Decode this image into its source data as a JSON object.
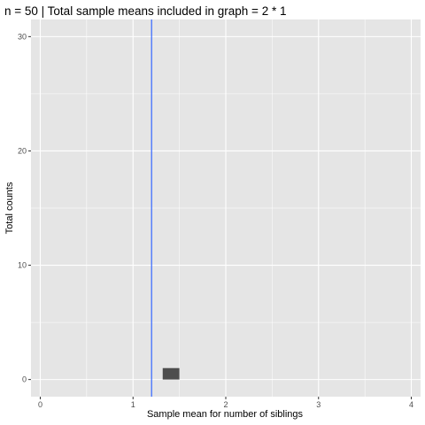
{
  "chart_data": {
    "type": "bar",
    "title": "n = 50 | Total sample means included in graph = 2 * 1",
    "xlabel": "Sample mean for number of siblings",
    "ylabel": "Total counts",
    "xlim": [
      -0.1,
      4.1
    ],
    "ylim": [
      -1.5,
      31.5
    ],
    "x_ticks": [
      0,
      1,
      2,
      3,
      4
    ],
    "x_tick_labels": [
      "0",
      "1",
      "2",
      "3",
      "4"
    ],
    "y_ticks": [
      0,
      10,
      20,
      30
    ],
    "y_tick_labels": [
      "0",
      "10",
      "20",
      "30"
    ],
    "x_minor_ticks": [
      0.5,
      1.5,
      2.5,
      3.5
    ],
    "y_minor_ticks": [
      5,
      15,
      25
    ],
    "grid": true,
    "bars": [
      {
        "x_start": 1.32,
        "x_end": 1.5,
        "count": 1
      }
    ],
    "reference_line": {
      "x": 1.2
    },
    "colors": {
      "panel_background": "#e5e5e5",
      "grid": "#ffffff",
      "bar": "#4d4d4d",
      "reference_line": "#3366ff",
      "tick_text": "#4d4d4d",
      "tick_mark": "#333333"
    }
  }
}
